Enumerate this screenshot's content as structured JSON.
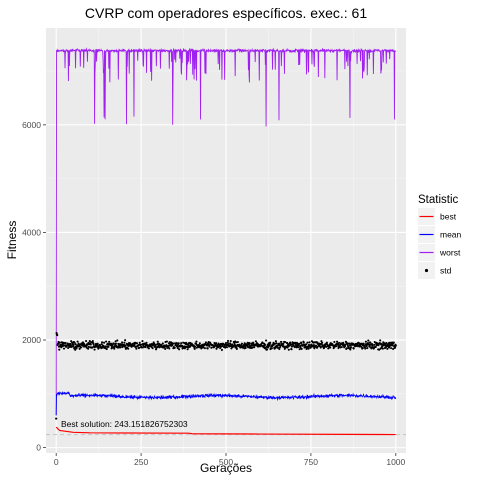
{
  "chart_data": {
    "type": "line",
    "title": "CVRP com operadores específicos. exec.: 61",
    "xlabel": "Gerações",
    "ylabel": "Fitness",
    "xlim": [
      -30,
      1030
    ],
    "ylim": [
      -100,
      7800
    ],
    "x_ticks": [
      0,
      250,
      500,
      750,
      1000
    ],
    "y_ticks": [
      0,
      2000,
      4000,
      6000
    ],
    "grid": true,
    "legend": {
      "title": "Statistic",
      "placement": "right",
      "entries": [
        {
          "name": "best",
          "color": "#ff0000",
          "style": "line"
        },
        {
          "name": "mean",
          "color": "#0000ff",
          "style": "line"
        },
        {
          "name": "worst",
          "color": "#a020f0",
          "style": "line"
        },
        {
          "name": "std",
          "color": "#000000",
          "style": "point"
        }
      ]
    },
    "generations": 1000,
    "series": [
      {
        "name": "best",
        "color": "#ff0000",
        "initial": 380,
        "points": [
          [
            0,
            380
          ],
          [
            10,
            320
          ],
          [
            50,
            285
          ],
          [
            100,
            275
          ],
          [
            200,
            272
          ],
          [
            390,
            268
          ],
          [
            400,
            258
          ],
          [
            600,
            252
          ],
          [
            860,
            246
          ],
          [
            1000,
            243
          ]
        ]
      },
      {
        "name": "mean",
        "color": "#0000ff",
        "initial": 600,
        "level": 950,
        "noise": 45
      },
      {
        "name": "worst",
        "color": "#a020f0",
        "initial": 600,
        "level": 7380,
        "noise": 40,
        "dip_min": 5950
      },
      {
        "name": "std",
        "color": "#000000",
        "initial": 540,
        "level": 1900,
        "noise": 75,
        "start_peak": 2150
      }
    ],
    "hline": {
      "y": 243.151826752303,
      "style": "dashed",
      "color": "#c8c8c8"
    },
    "annotation": "Best solution: 243.151826752303"
  }
}
